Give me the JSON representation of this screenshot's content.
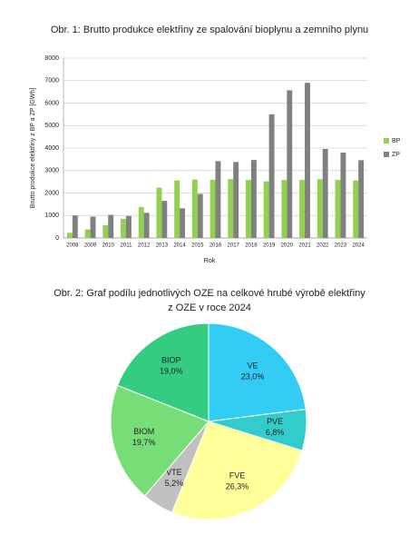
{
  "chart_data": [
    {
      "type": "bar",
      "title": "Obr. 1: Brutto produkce elektřiny ze spalování bioplynu a zemního plynu",
      "x_label": "Rok",
      "y_label": "Brutto produkce elektřiny z BP a ZP [GWh]",
      "categories": [
        "2008",
        "2009",
        "2010",
        "2011",
        "2012",
        "2013",
        "2014",
        "2015",
        "2016",
        "2017",
        "2018",
        "2019",
        "2020",
        "2021",
        "2022",
        "2023",
        "2024"
      ],
      "series": [
        {
          "name": "BP",
          "color": "#92d050",
          "values": [
            230,
            380,
            570,
            850,
            1380,
            2240,
            2560,
            2600,
            2590,
            2620,
            2580,
            2520,
            2580,
            2580,
            2620,
            2580,
            2560
          ]
        },
        {
          "name": "ZP",
          "color": "#808080",
          "values": [
            1000,
            950,
            1030,
            980,
            1120,
            1650,
            1320,
            1960,
            3420,
            3380,
            3470,
            5500,
            6570,
            6900,
            3960,
            3800,
            3460
          ]
        }
      ],
      "ylim": [
        0,
        8000
      ],
      "yticks": [
        0,
        1000,
        2000,
        3000,
        4000,
        5000,
        6000,
        7000,
        8000
      ],
      "grid": true,
      "legend": "right"
    },
    {
      "type": "pie",
      "title": [
        "Obr. 2: Graf podílu jednotlivých OZE na celkové hrubé výrobě elektřiny",
        "z OZE v roce 2024"
      ],
      "categories": [
        "VE",
        "PVE",
        "FVE",
        "VTE",
        "BIOM",
        "BIOP"
      ],
      "values": [
        23.0,
        6.8,
        26.3,
        5.2,
        19.7,
        19.0
      ],
      "value_labels": [
        "23,0%",
        "6,8%",
        "26,3%",
        "5,2%",
        "19,7%",
        "19,0%"
      ],
      "colors": [
        "#33ccf5",
        "#33cccc",
        "#ffff99",
        "#c0c0c0",
        "#77dd77",
        "#33cc80"
      ]
    }
  ]
}
